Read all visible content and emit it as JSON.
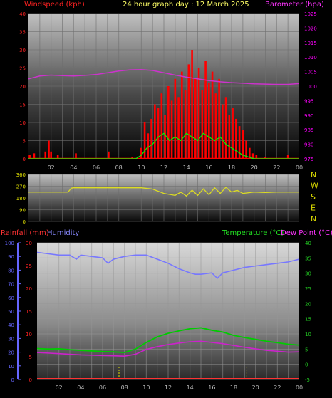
{
  "header": {
    "windspeed_label": "Windspeed (kph)",
    "title": "24 hour graph day : 12 March 2025",
    "barometer_label": "Barometer (hpa)"
  },
  "bottom_header": {
    "rainfall_label": "Rainfall (mm)",
    "humidity_label": "Humidity",
    "temperature_label": "Temperature (°C)",
    "dewpoint_label": "Dew Point (°C)"
  },
  "colors": {
    "windspeed": "#ff0000",
    "gust": "#00ff00",
    "barometer": "#cc33cc",
    "direction": "#dddd22",
    "rainfall": "#ff3333",
    "humidity": "#7777ff",
    "temperature": "#00cc00",
    "dewpoint": "#cc22cc",
    "axis_red": "#ff2222",
    "axis_magenta": "#ff00ff",
    "axis_yellow": "#dddd00",
    "axis_blue": "#6666ff",
    "axis_green": "#22cc22"
  },
  "chart_data": [
    {
      "type": "bar",
      "id": "wind",
      "title": "24 hour graph day : 12 March 2025",
      "x_ticks": [
        "02",
        "04",
        "06",
        "08",
        "10",
        "12",
        "14",
        "16",
        "18",
        "20",
        "22",
        "00"
      ],
      "y_left": {
        "label": "Windspeed (kph)",
        "range": [
          0,
          40
        ],
        "ticks": [
          0,
          5,
          10,
          15,
          20,
          25,
          30,
          35,
          40
        ]
      },
      "y_right": {
        "label": "Barometer (hpa)",
        "range": [
          975,
          1025
        ],
        "ticks": [
          975,
          980,
          985,
          990,
          995,
          1000,
          1005,
          1010,
          1015,
          1020,
          1025
        ]
      },
      "series": [
        {
          "name": "Windspeed (kph)",
          "kind": "bars",
          "points": [
            [
              0.1,
              1
            ],
            [
              0.5,
              1.5
            ],
            [
              1.5,
              2
            ],
            [
              1.8,
              5
            ],
            [
              2.0,
              2
            ],
            [
              2.6,
              1
            ],
            [
              4.2,
              1.5
            ],
            [
              7.1,
              2
            ],
            [
              9.2,
              0.5
            ],
            [
              10.0,
              3
            ],
            [
              10.3,
              10
            ],
            [
              10.6,
              7
            ],
            [
              10.9,
              11
            ],
            [
              11.2,
              15
            ],
            [
              11.5,
              14
            ],
            [
              11.8,
              18
            ],
            [
              12.1,
              12
            ],
            [
              12.4,
              20
            ],
            [
              12.7,
              16
            ],
            [
              13.0,
              22
            ],
            [
              13.3,
              17
            ],
            [
              13.6,
              24
            ],
            [
              13.9,
              19
            ],
            [
              14.2,
              26
            ],
            [
              14.5,
              30
            ],
            [
              14.8,
              22
            ],
            [
              15.1,
              25
            ],
            [
              15.4,
              19
            ],
            [
              15.7,
              27
            ],
            [
              16.0,
              21
            ],
            [
              16.3,
              24
            ],
            [
              16.6,
              18
            ],
            [
              16.9,
              22
            ],
            [
              17.2,
              15
            ],
            [
              17.5,
              17
            ],
            [
              17.8,
              12
            ],
            [
              18.1,
              14
            ],
            [
              18.4,
              11
            ],
            [
              18.7,
              9
            ],
            [
              19.0,
              8
            ],
            [
              19.3,
              5
            ],
            [
              19.6,
              3
            ],
            [
              19.9,
              1.5
            ],
            [
              20.2,
              1
            ],
            [
              21.0,
              0.5
            ],
            [
              23.0,
              1
            ]
          ]
        },
        {
          "name": "Gust",
          "kind": "line",
          "points": [
            [
              0,
              0
            ],
            [
              9.5,
              0
            ],
            [
              10,
              1
            ],
            [
              10.5,
              3
            ],
            [
              11,
              4
            ],
            [
              11.5,
              6
            ],
            [
              12,
              7
            ],
            [
              12.5,
              5
            ],
            [
              13,
              6
            ],
            [
              13.5,
              5
            ],
            [
              14,
              7
            ],
            [
              14.5,
              6
            ],
            [
              15,
              5
            ],
            [
              15.5,
              7
            ],
            [
              16,
              6
            ],
            [
              16.5,
              5
            ],
            [
              17,
              6
            ],
            [
              17.5,
              4
            ],
            [
              18,
              3
            ],
            [
              18.5,
              2
            ],
            [
              19,
              1
            ],
            [
              19.5,
              0.5
            ],
            [
              20,
              0
            ],
            [
              24,
              0
            ]
          ]
        },
        {
          "name": "Barometer (hpa)",
          "kind": "line",
          "axis": "right",
          "points": [
            [
              0,
              1002.5
            ],
            [
              1,
              1003.5
            ],
            [
              2,
              1003.8
            ],
            [
              3,
              1003.6
            ],
            [
              4,
              1003.5
            ],
            [
              5,
              1003.7
            ],
            [
              6,
              1004.0
            ],
            [
              7,
              1004.6
            ],
            [
              8,
              1005.2
            ],
            [
              9,
              1005.6
            ],
            [
              10,
              1005.7
            ],
            [
              11,
              1005.4
            ],
            [
              12,
              1004.6
            ],
            [
              13,
              1003.8
            ],
            [
              14,
              1003.1
            ],
            [
              15,
              1002.5
            ],
            [
              16,
              1001.9
            ],
            [
              17,
              1001.5
            ],
            [
              18,
              1001.2
            ],
            [
              19,
              1001.0
            ],
            [
              20,
              1000.8
            ],
            [
              21,
              1000.7
            ],
            [
              22,
              1000.6
            ],
            [
              23,
              1000.6
            ],
            [
              24,
              1000.9
            ]
          ]
        }
      ]
    },
    {
      "type": "line",
      "id": "direction",
      "y_left": {
        "range": [
          0,
          360
        ],
        "ticks": [
          0,
          90,
          180,
          270,
          360
        ]
      },
      "y_right_labels": [
        "N",
        "W",
        "S",
        "E",
        "N"
      ],
      "series": [
        {
          "name": "Wind direction",
          "points": [
            [
              0,
              225
            ],
            [
              3.5,
              225
            ],
            [
              3.8,
              255
            ],
            [
              4,
              258
            ],
            [
              10,
              258
            ],
            [
              11,
              248
            ],
            [
              12,
              215
            ],
            [
              13,
              200
            ],
            [
              13.5,
              225
            ],
            [
              14,
              195
            ],
            [
              14.5,
              240
            ],
            [
              15,
              200
            ],
            [
              15.5,
              250
            ],
            [
              16,
              205
            ],
            [
              16.5,
              258
            ],
            [
              17,
              215
            ],
            [
              17.5,
              262
            ],
            [
              18,
              225
            ],
            [
              18.5,
              238
            ],
            [
              19,
              215
            ],
            [
              20,
              225
            ],
            [
              21,
              222
            ],
            [
              22,
              225
            ],
            [
              24,
              225
            ]
          ]
        }
      ]
    },
    {
      "type": "line",
      "id": "climate",
      "x_ticks": [
        "02",
        "04",
        "06",
        "08",
        "10",
        "12",
        "14",
        "16",
        "18",
        "20",
        "22",
        "00"
      ],
      "y_left_outer": {
        "label": "Humidity",
        "range": [
          0,
          100
        ],
        "ticks": [
          0,
          10,
          20,
          30,
          40,
          50,
          60,
          70,
          80,
          90,
          100
        ]
      },
      "y_left_inner": {
        "label": "Rainfall (mm)",
        "range": [
          0,
          30
        ],
        "ticks": [
          0,
          5,
          10,
          15,
          20,
          25,
          30
        ]
      },
      "y_right": {
        "label": "Temperature (°C) / Dew Point (°C)",
        "range": [
          -5,
          40
        ],
        "ticks": [
          -5,
          0,
          5,
          10,
          15,
          20,
          25,
          30,
          35,
          40
        ]
      },
      "series": [
        {
          "name": "Humidity",
          "axis": "humidity",
          "points": [
            [
              0,
              93
            ],
            [
              1,
              92
            ],
            [
              2,
              91
            ],
            [
              3,
              91
            ],
            [
              3.6,
              88
            ],
            [
              4,
              91
            ],
            [
              5,
              90
            ],
            [
              6,
              89
            ],
            [
              6.5,
              85
            ],
            [
              7,
              88
            ],
            [
              8,
              90
            ],
            [
              9,
              91
            ],
            [
              10,
              91
            ],
            [
              11,
              88
            ],
            [
              12,
              85
            ],
            [
              13,
              81
            ],
            [
              14,
              78
            ],
            [
              14.5,
              77
            ],
            [
              15,
              77
            ],
            [
              16,
              78
            ],
            [
              16.5,
              74
            ],
            [
              17,
              78
            ],
            [
              18,
              80
            ],
            [
              19,
              82
            ],
            [
              20,
              83
            ],
            [
              21,
              84
            ],
            [
              22,
              85
            ],
            [
              23,
              86
            ],
            [
              24,
              88
            ]
          ]
        },
        {
          "name": "Temperature (°C)",
          "axis": "temp",
          "points": [
            [
              0,
              5.2
            ],
            [
              1,
              5.0
            ],
            [
              2,
              5.1
            ],
            [
              3,
              4.8
            ],
            [
              4,
              4.6
            ],
            [
              5,
              4.4
            ],
            [
              6,
              4.2
            ],
            [
              7,
              4.1
            ],
            [
              8,
              3.9
            ],
            [
              9,
              5.0
            ],
            [
              10,
              7.2
            ],
            [
              11,
              9.0
            ],
            [
              12,
              10.2
            ],
            [
              13,
              11.0
            ],
            [
              14,
              11.7
            ],
            [
              15,
              12.0
            ],
            [
              16,
              11.2
            ],
            [
              17,
              10.6
            ],
            [
              18,
              9.5
            ],
            [
              19,
              8.8
            ],
            [
              20,
              8.2
            ],
            [
              21,
              7.6
            ],
            [
              22,
              7.1
            ],
            [
              23,
              6.6
            ],
            [
              24,
              6.3
            ]
          ]
        },
        {
          "name": "Dew Point (°C)",
          "axis": "temp",
          "points": [
            [
              0,
              3.9
            ],
            [
              1,
              3.7
            ],
            [
              2,
              3.5
            ],
            [
              3,
              3.3
            ],
            [
              4,
              3.1
            ],
            [
              5,
              3.0
            ],
            [
              6,
              2.9
            ],
            [
              7,
              2.8
            ],
            [
              8,
              2.7
            ],
            [
              9,
              3.3
            ],
            [
              10,
              4.9
            ],
            [
              11,
              5.8
            ],
            [
              12,
              6.5
            ],
            [
              13,
              7.0
            ],
            [
              14,
              7.4
            ],
            [
              15,
              7.6
            ],
            [
              16,
              7.2
            ],
            [
              17,
              6.8
            ],
            [
              18,
              6.2
            ],
            [
              19,
              5.6
            ],
            [
              20,
              5.1
            ],
            [
              21,
              4.6
            ],
            [
              22,
              4.3
            ],
            [
              23,
              4.0
            ],
            [
              24,
              4.1
            ]
          ]
        },
        {
          "name": "Rainfall (mm)",
          "axis": "rain",
          "points": [
            [
              0,
              0
            ],
            [
              24,
              0
            ]
          ]
        }
      ]
    }
  ]
}
